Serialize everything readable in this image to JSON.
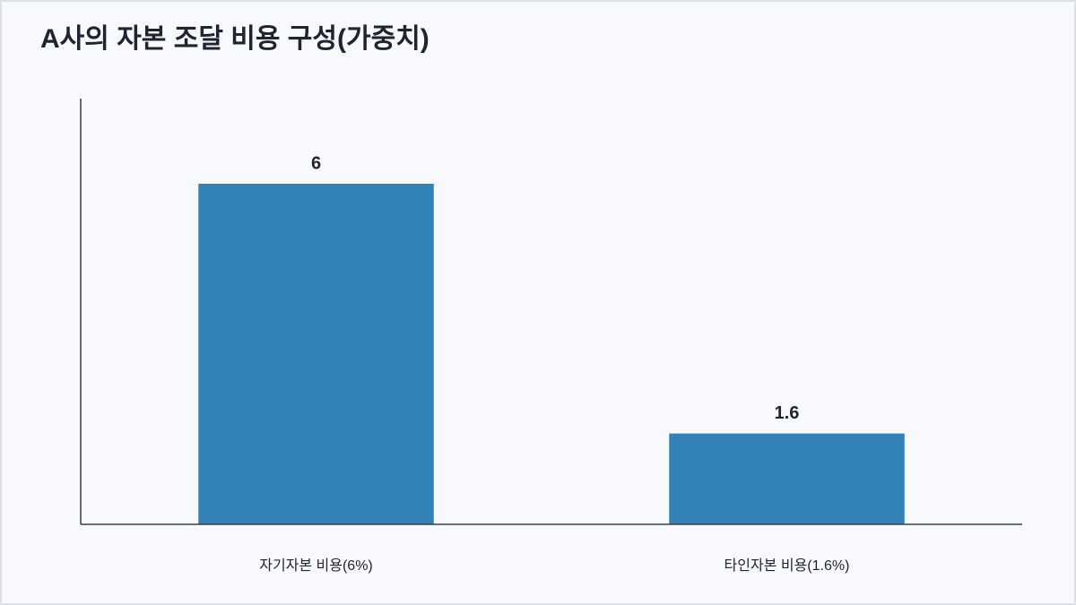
{
  "chart_data": {
    "type": "bar",
    "title": "A사의 자본 조달 비용 구성(가중치)",
    "categories": [
      "자기자본 비용(6%)",
      "타인자본 비용(1.6%)"
    ],
    "values": [
      6,
      1.6
    ],
    "color": "#3282b8",
    "ylim": [
      0,
      7.5
    ],
    "grid": false
  }
}
